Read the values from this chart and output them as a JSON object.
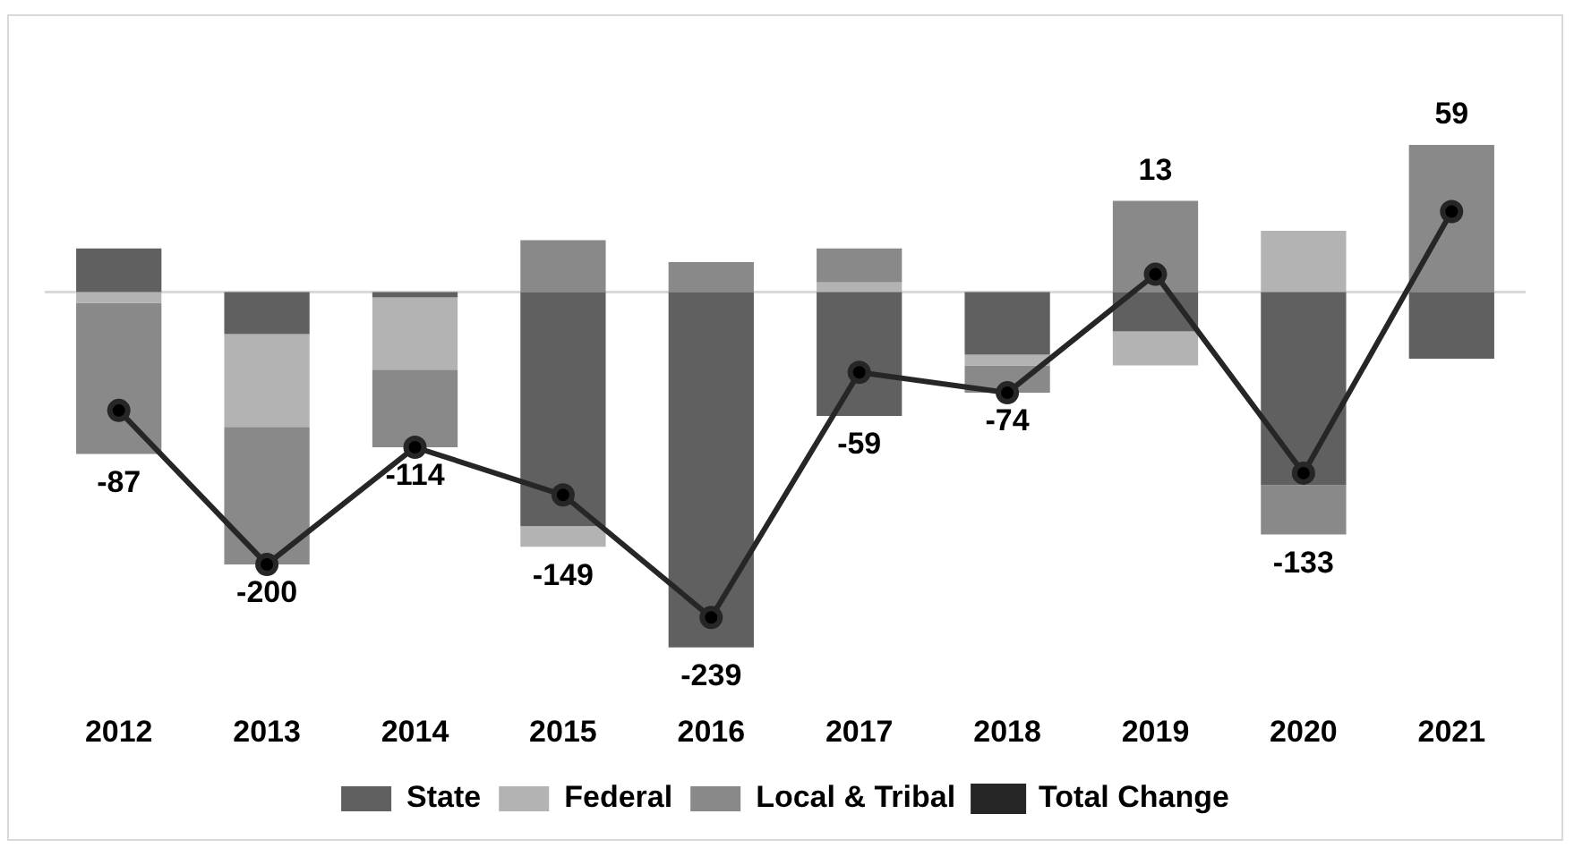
{
  "chart_data": {
    "type": "bar",
    "stacked": true,
    "categories": [
      "2012",
      "2013",
      "2014",
      "2015",
      "2016",
      "2017",
      "2018",
      "2019",
      "2020",
      "2021"
    ],
    "series": [
      {
        "name": "State",
        "color": "#606060",
        "values": [
          32,
          -31,
          -4,
          -172,
          -261,
          -91,
          -46,
          -29,
          -142,
          -49
        ]
      },
      {
        "name": "Federal",
        "color": "#b3b3b3",
        "values": [
          -8,
          -68,
          -53,
          -15,
          null,
          7,
          -8,
          -25,
          45,
          null
        ]
      },
      {
        "name": "Local & Tribal",
        "color": "#898989",
        "values": [
          -111,
          -101,
          -57,
          38,
          22,
          25,
          -20,
          67,
          -36,
          108
        ]
      },
      {
        "name": "Total Change",
        "type": "line",
        "color": "#262626",
        "marker": "circle",
        "values": [
          -87,
          -200,
          -114,
          -149,
          -239,
          -59,
          -74,
          13,
          -133,
          59
        ],
        "value_labels": [
          "-87",
          "-200",
          "-114",
          "-149",
          "-239",
          "-59",
          "-74",
          "13",
          "-133",
          "59"
        ]
      }
    ],
    "ref_lines": [
      {
        "axis": "y",
        "value": 0,
        "color": "#d9d9d9"
      }
    ],
    "legend": "bottom",
    "grid": false
  }
}
